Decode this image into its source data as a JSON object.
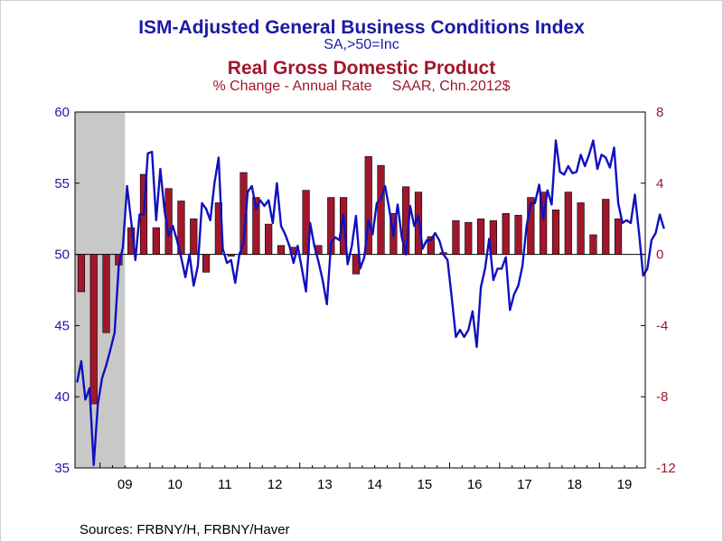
{
  "titles": {
    "ism_title": "ISM-Adjusted General Business Conditions Index",
    "ism_subtitle": "SA,>50=Inc",
    "gdp_title": "Real Gross Domestic Product",
    "gdp_subtitle": "% Change - Annual Rate     SAAR, Chn.2012$"
  },
  "sources": "Sources:  FRBNY/H, FRBNY/Haver",
  "colors": {
    "ism_line": "#1010c0",
    "gdp_bar": "#a0172c",
    "recession_shade": "#c8c8c8",
    "left_axis_text": "#1a1aa6",
    "right_axis_text": "#a0172c"
  },
  "chart_data": {
    "type": "bar+line",
    "x_start": "2008-07",
    "x_end": "2019-11",
    "x_ticks": [
      "09",
      "10",
      "11",
      "12",
      "13",
      "14",
      "15",
      "16",
      "17",
      "18",
      "19"
    ],
    "left_axis": {
      "ylim": [
        35,
        60
      ],
      "ticks": [
        35,
        40,
        45,
        50,
        55,
        60
      ],
      "series": "ISM-Adjusted General Business Conditions Index"
    },
    "right_axis": {
      "ylim": [
        -12,
        8
      ],
      "ticks": [
        -12,
        -8,
        -4,
        0,
        4,
        8
      ],
      "series": "Real Gross Domestic Product"
    },
    "recession": {
      "start": "2008-07",
      "end": "2009-06"
    },
    "gdp_quarterly": {
      "name": "Real Gross Domestic Product",
      "start_quarter": "2008Q3",
      "values": [
        -2.1,
        -8.4,
        -4.4,
        -0.6,
        1.5,
        4.5,
        1.5,
        3.7,
        3.0,
        2.0,
        -1.0,
        2.9,
        -0.1,
        4.6,
        3.2,
        1.7,
        0.5,
        0.4,
        3.6,
        0.5,
        3.2,
        3.2,
        -1.1,
        5.5,
        5.0,
        2.3,
        3.8,
        3.5,
        1.0,
        0.1,
        1.9,
        1.8,
        2.0,
        1.9,
        2.3,
        2.2,
        3.2,
        3.5,
        2.5,
        3.5,
        2.9,
        1.1,
        3.1,
        2.0
      ]
    },
    "ism_monthly": {
      "name": "ISM-Adjusted General Business Conditions Index",
      "start_month": "2008-07",
      "values": [
        41.0,
        42.5,
        39.8,
        40.6,
        35.2,
        39.5,
        41.3,
        42.2,
        43.3,
        44.5,
        49.2,
        50.5,
        54.8,
        52.3,
        49.6,
        52.8,
        52.8,
        57.1,
        57.2,
        52.4,
        56.0,
        53.1,
        51.3,
        52.0,
        51.0,
        49.8,
        48.4,
        50.0,
        47.8,
        49.2,
        53.6,
        53.2,
        52.4,
        55.0,
        56.8,
        50.4,
        49.4,
        49.6,
        48.0,
        50.0,
        50.8,
        54.4,
        54.8,
        53.2,
        53.8,
        53.4,
        53.8,
        52.2,
        55.0,
        52.0,
        51.4,
        50.6,
        49.4,
        50.6,
        49.0,
        47.4,
        52.2,
        50.6,
        49.5,
        48.2,
        46.5,
        50.8,
        51.2,
        51.0,
        52.8,
        49.3,
        50.6,
        52.7,
        49.0,
        49.8,
        52.4,
        51.4,
        53.6,
        53.9,
        54.8,
        53.2,
        51.3,
        53.5,
        51.2,
        50.0,
        53.4,
        52.0,
        52.7,
        50.4,
        51.0,
        51.0,
        51.5,
        51.0,
        50.0,
        49.6,
        47.0,
        44.2,
        44.7,
        44.2,
        44.7,
        46.0,
        43.5,
        47.7,
        49.0,
        51.1,
        48.2,
        49.0,
        49.0,
        49.8,
        46.1,
        47.2,
        47.8,
        49.2,
        52.0,
        53.6,
        53.6,
        54.9,
        52.5,
        54.5,
        53.5,
        58.0,
        55.8,
        55.6,
        56.2,
        55.7,
        55.8,
        57.0,
        56.2,
        57.0,
        58.0,
        56.0,
        57.0,
        56.8,
        56.1,
        57.5,
        53.6,
        52.2,
        52.4,
        52.2,
        54.2,
        51.5,
        48.5,
        49.0,
        51.0,
        51.5,
        52.8,
        51.8
      ]
    }
  }
}
